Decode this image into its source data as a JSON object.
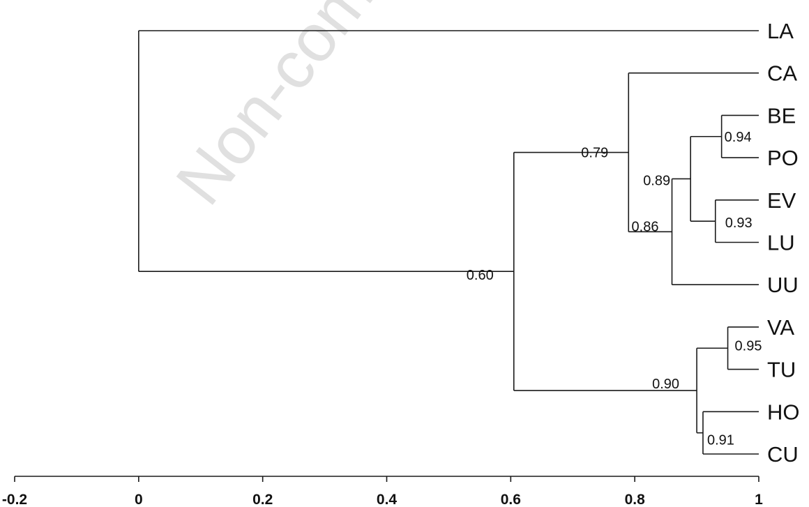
{
  "watermark": "Non-commercial",
  "chart_data": {
    "type": "dendrogram",
    "xlim": [
      -0.2,
      1.0
    ],
    "axis_ticks": [
      "-0.2",
      "0",
      "0.2",
      "0.4",
      "0.6",
      "0.8",
      "1"
    ],
    "axis_tick_values": [
      -0.2,
      0,
      0.2,
      0.4,
      0.6,
      0.8,
      1.0
    ],
    "leaves": [
      "LA",
      "CA",
      "BE",
      "PO",
      "EV",
      "LU",
      "UU",
      "VA",
      "TU",
      "HO",
      "CU"
    ],
    "nodes": [
      {
        "id": "root",
        "similarity": 0.0,
        "children": [
          "LA",
          "n060"
        ]
      },
      {
        "id": "n060",
        "similarity": 0.605,
        "label": "0.60",
        "children": [
          "n079",
          "n090"
        ]
      },
      {
        "id": "n079",
        "similarity": 0.79,
        "label": "0.79",
        "children": [
          "CA",
          "n086"
        ]
      },
      {
        "id": "n086",
        "similarity": 0.86,
        "label": "0.86",
        "children": [
          "n089",
          "UU"
        ]
      },
      {
        "id": "n089",
        "similarity": 0.89,
        "label": "0.89",
        "children": [
          "n094",
          "n093"
        ]
      },
      {
        "id": "n094",
        "similarity": 0.94,
        "label": "0.94",
        "children": [
          "BE",
          "PO"
        ]
      },
      {
        "id": "n093",
        "similarity": 0.93,
        "label": "0.93",
        "children": [
          "EV",
          "LU"
        ]
      },
      {
        "id": "n090",
        "similarity": 0.9,
        "label": "0.90",
        "children": [
          "n095",
          "n091"
        ]
      },
      {
        "id": "n095",
        "similarity": 0.95,
        "label": "0.95",
        "children": [
          "VA",
          "TU"
        ]
      },
      {
        "id": "n091",
        "similarity": 0.91,
        "label": "0.91",
        "children": [
          "HO",
          "CU"
        ]
      }
    ]
  }
}
